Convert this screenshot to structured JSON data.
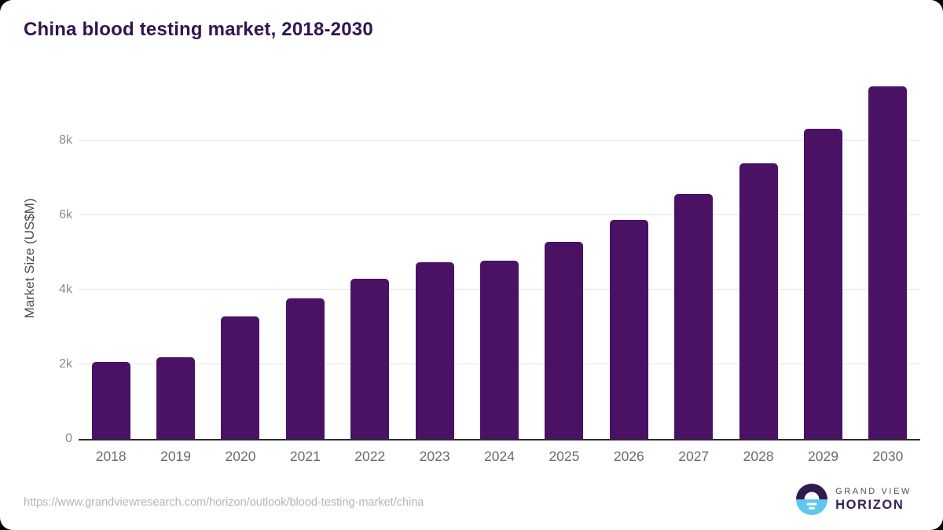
{
  "header": {
    "title": "China blood testing market, 2018-2030"
  },
  "chart_data": {
    "type": "bar",
    "title": "China blood testing market, 2018-2030",
    "categories": [
      "2018",
      "2019",
      "2020",
      "2021",
      "2022",
      "2023",
      "2024",
      "2025",
      "2026",
      "2027",
      "2028",
      "2029",
      "2030"
    ],
    "values": [
      2060,
      2190,
      3280,
      3770,
      4290,
      4740,
      4780,
      5290,
      5880,
      6570,
      7390,
      8320,
      9450
    ],
    "xlabel": "",
    "ylabel": "Market Size (US$M)",
    "yticks": [
      0,
      2000,
      4000,
      6000,
      8000
    ],
    "ytick_labels": [
      "0",
      "2k",
      "4k",
      "6k",
      "8k"
    ],
    "ylim": [
      0,
      9680
    ],
    "grid": "horizontal",
    "legend": "none",
    "bar_color": "#4a1164"
  },
  "footer": {
    "source_url": "https://www.grandviewresearch.com/horizon/outlook/blood-testing-market/china",
    "logo": {
      "line1": "GRAND VIEW",
      "line2": "HORIZON",
      "icon": "horizon-sunset-icon",
      "icon_top_color": "#2f1b4d",
      "icon_bottom_color": "#5ec6f0"
    }
  },
  "colors": {
    "title": "#321450",
    "bar": "#4a1164",
    "axis_line": "#2b2b2b",
    "gridline": "#e7e7e7",
    "ytick_text": "#8c8c8c",
    "xtick_text": "#6b6b6b",
    "ylabel_text": "#4d4d4d",
    "url_text": "#b5b5b5"
  }
}
